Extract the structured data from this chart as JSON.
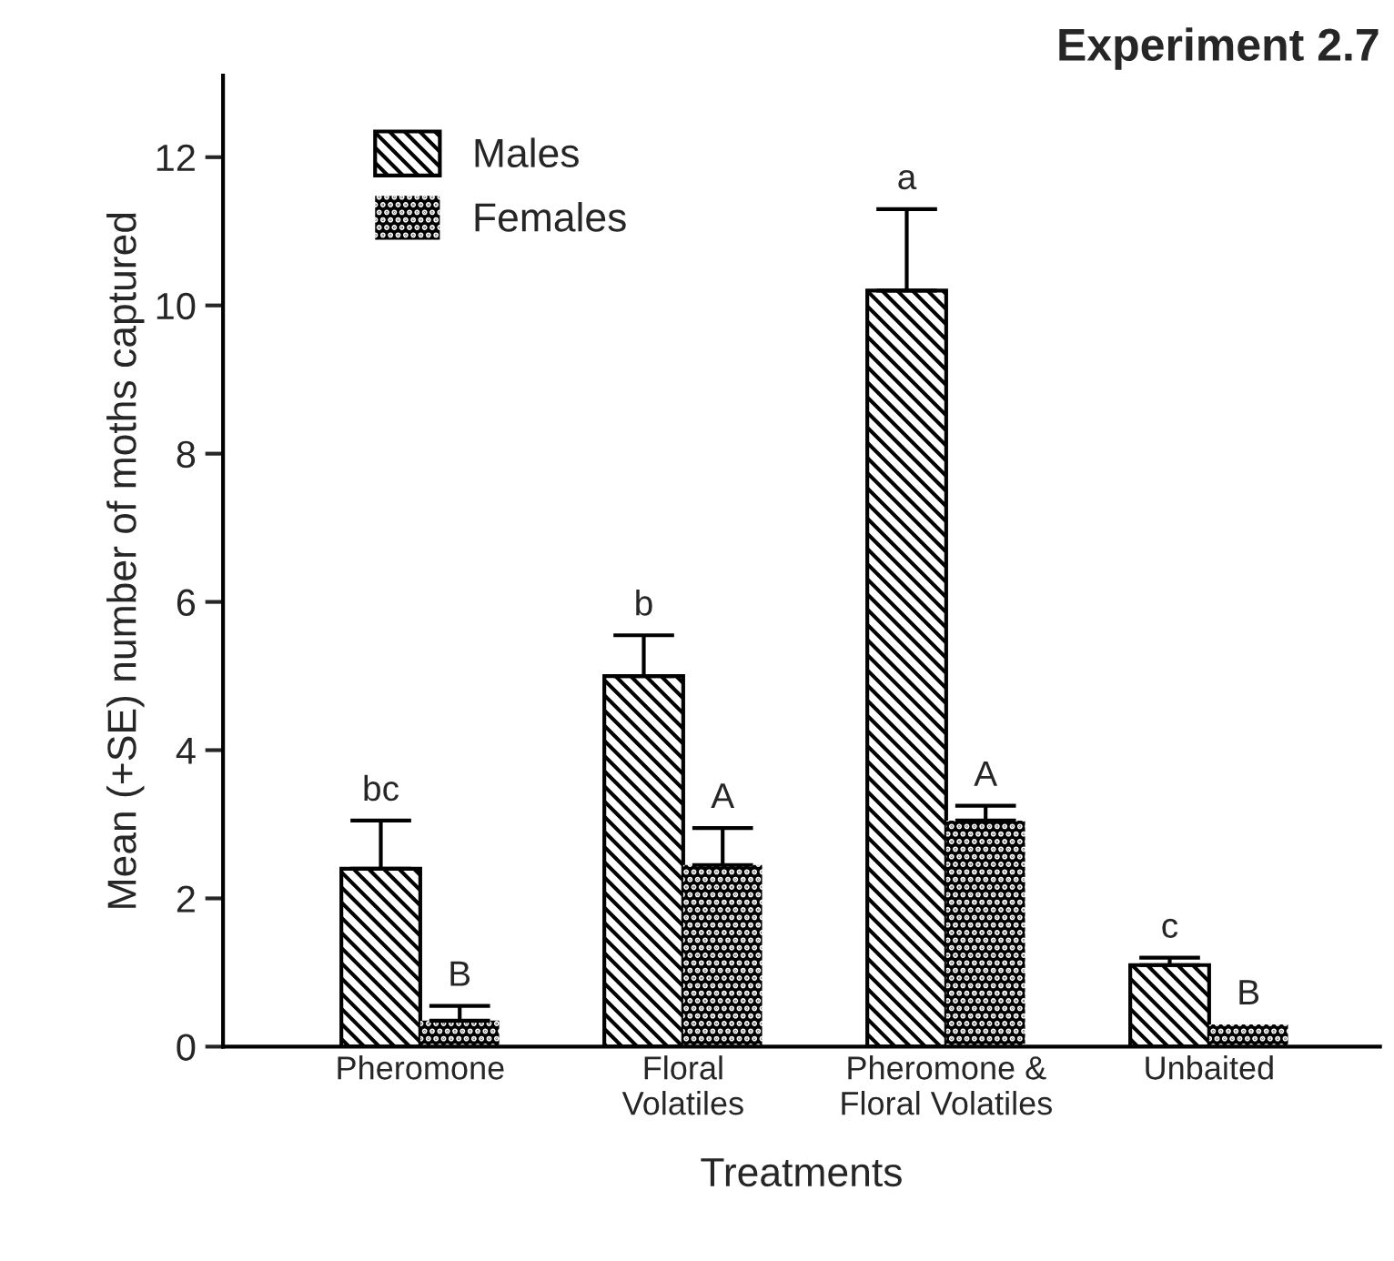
{
  "chart_data": {
    "type": "bar",
    "title": "Experiment 2.7",
    "xlabel": "Treatments",
    "ylabel": "Mean (+SE) number of moths captured",
    "categories": [
      "Pheromone",
      "Floral\nVolatiles",
      "Pheromone &\nFloral Volatiles",
      "Unbaited"
    ],
    "series": [
      {
        "name": "Males",
        "color": "#000000",
        "values": [
          2.4,
          5.0,
          10.2,
          1.1
        ],
        "errors": [
          0.65,
          0.55,
          1.1,
          0.1
        ]
      },
      {
        "name": "Females",
        "color": "#000000",
        "values": [
          0.35,
          2.45,
          3.05,
          0.3
        ],
        "errors": [
          0.2,
          0.5,
          0.2,
          null
        ]
      }
    ],
    "ylim": [
      0,
      13.1
    ],
    "yticks": [
      0,
      2,
      4,
      6,
      8,
      10,
      12
    ],
    "grid": false,
    "legend": "top left",
    "annotations": [
      {
        "text": "bc",
        "x": "Pheromone",
        "y": 2.4
      },
      {
        "text": "B",
        "x": "Pheromone",
        "y": 0.35
      },
      {
        "text": "b",
        "x": "Floral\nVolatiles",
        "y": 5.0
      },
      {
        "text": "A",
        "x": "Floral\nVolatiles",
        "y": 2.45
      },
      {
        "text": "a",
        "x": "Pheromone &\nFloral Volatiles",
        "y": 10.2
      },
      {
        "text": "A",
        "x": "Pheromone &\nFloral Volatiles",
        "y": 3.05
      },
      {
        "text": "c",
        "x": "Unbaited",
        "y": 1.1
      },
      {
        "text": "B",
        "x": "Unbaited",
        "y": 0.3
      }
    ]
  }
}
